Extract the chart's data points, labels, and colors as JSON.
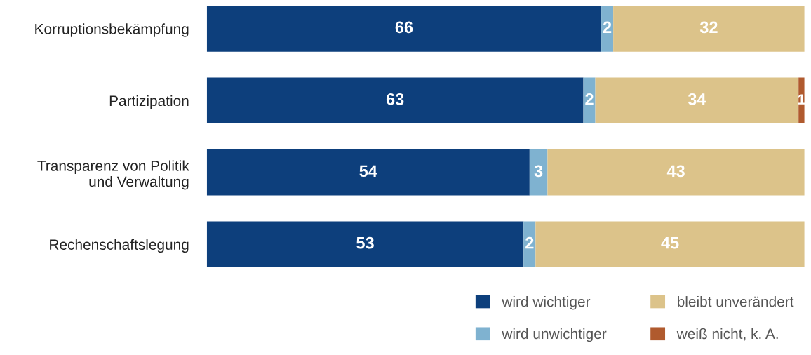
{
  "chart_data": {
    "type": "bar",
    "orientation": "horizontal",
    "stacked": true,
    "data_labels": true,
    "legend": "bottom right",
    "grid": false,
    "categories": [
      "Korruptionsbekämpfung",
      "Partizipation",
      "Transparenz von Politik\nund Verwaltung",
      "Rechenschaftslegung"
    ],
    "series": [
      {
        "name": "wird wichtiger",
        "color": "#0d3f7c",
        "values": [
          66,
          63,
          54,
          53
        ]
      },
      {
        "name": "wird unwichtiger",
        "color": "#7fb2d0",
        "values": [
          2,
          2,
          3,
          2
        ]
      },
      {
        "name": "bleibt unverändert",
        "color": "#dcc38a",
        "values": [
          32,
          34,
          43,
          45
        ]
      },
      {
        "name": "weiß nicht, k. A.",
        "color": "#b05a2e",
        "values": [
          null,
          1,
          null,
          null
        ]
      }
    ]
  }
}
